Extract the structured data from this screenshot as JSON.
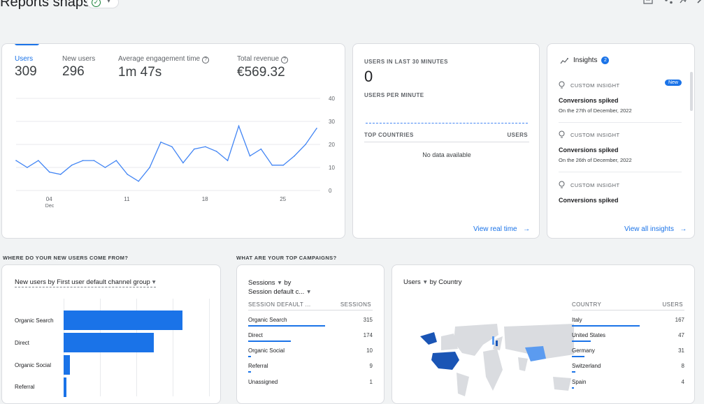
{
  "header": {
    "title": "Reports snapshot",
    "icons": [
      "check-circle-icon",
      "chevron-down-icon",
      "comparison-icon",
      "share-icon",
      "insights-icon",
      "edit-icon"
    ]
  },
  "metrics": [
    {
      "label": "Users",
      "value": "309",
      "active": true
    },
    {
      "label": "New users",
      "value": "296"
    },
    {
      "label": "Average engagement time",
      "value": "1m 47s",
      "help": true
    },
    {
      "label": "Total revenue",
      "value": "€569.32",
      "help": true
    }
  ],
  "chart_data": {
    "type": "line",
    "x_tick_labels": [
      "04",
      "11",
      "18",
      "25"
    ],
    "x_subtitle": "Dec",
    "y_tick_labels": [
      "0",
      "10",
      "20",
      "30",
      "40"
    ],
    "ylim": [
      0,
      40
    ],
    "series": [
      {
        "color": "#4285f4",
        "values": [
          13,
          10,
          13,
          8,
          7,
          11,
          13,
          13,
          10,
          13,
          7,
          4,
          10,
          21,
          19,
          12,
          18,
          19,
          17,
          13,
          28,
          15,
          18,
          11,
          11,
          15,
          20,
          27
        ]
      }
    ]
  },
  "realtime": {
    "heading": "USERS IN LAST 30 MINUTES",
    "value": "0",
    "per_minute": "USERS PER MINUTE",
    "top_countries": "TOP COUNTRIES",
    "users_col": "USERS",
    "empty": "No data available",
    "link": "View real time"
  },
  "insights": {
    "title": "Insights",
    "count": "2",
    "items": [
      {
        "type": "CUSTOM INSIGHT",
        "badge": "New",
        "title": "Conversions spiked",
        "sub": "On the 27th of December, 2022"
      },
      {
        "type": "CUSTOM INSIGHT",
        "title": "Conversions spiked",
        "sub": "On the 26th of December, 2022"
      },
      {
        "type": "CUSTOM INSIGHT",
        "title": "Conversions spiked"
      }
    ],
    "link": "View all insights"
  },
  "sections": {
    "new_users": "WHERE DO YOUR NEW USERS COME FROM?",
    "campaigns": "WHAT ARE YOUR TOP CAMPAIGNS?"
  },
  "acquisition": {
    "selector": "New users by First user default channel group",
    "bars": [
      {
        "label": "Organic Search",
        "value": 1.0
      },
      {
        "label": "Direct",
        "value": 0.76
      },
      {
        "label": "Organic Social",
        "value": 0.05
      },
      {
        "label": "Referral",
        "value": 0.02
      }
    ]
  },
  "campaigns": {
    "selector_line1": "Sessions",
    "selector_by": "by",
    "selector_line2": "Session default c...",
    "col1": "SESSION DEFAULT ...",
    "col2": "SESSIONS",
    "rows": [
      {
        "label": "Organic Search",
        "value": "315",
        "share": 1.0
      },
      {
        "label": "Direct",
        "value": "174",
        "share": 0.55
      },
      {
        "label": "Organic Social",
        "value": "10",
        "share": 0.03
      },
      {
        "label": "Referral",
        "value": "9",
        "share": 0.03
      },
      {
        "label": "Unassigned",
        "value": "1",
        "share": 0.01
      }
    ]
  },
  "country": {
    "selector": "Users",
    "selector_by": "by Country",
    "col1": "COUNTRY",
    "col2": "USERS",
    "rows": [
      {
        "label": "Italy",
        "value": "167",
        "share": 1.0
      },
      {
        "label": "United States",
        "value": "47",
        "share": 0.28
      },
      {
        "label": "Germany",
        "value": "31",
        "share": 0.19
      },
      {
        "label": "Switzerland",
        "value": "8",
        "share": 0.05
      },
      {
        "label": "Spain",
        "value": "4",
        "share": 0.02
      }
    ],
    "colors": {
      "land": "#dadce0",
      "high": "#1a55b5",
      "mid": "#5b9bf0"
    }
  }
}
